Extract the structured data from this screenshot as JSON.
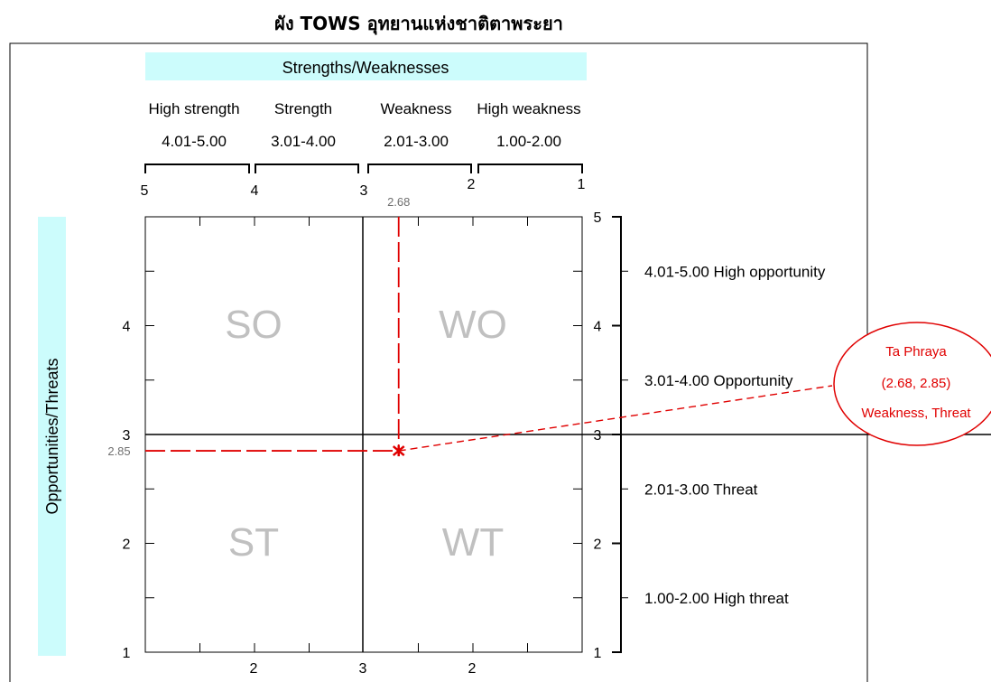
{
  "chart_data": {
    "type": "scatter",
    "title": "ผัง TOWS อุทยานแห่งชาติตาพระยา",
    "x_axis": {
      "header": "Strengths/Weaknesses",
      "scale_ticks": [
        "5",
        "4",
        "3",
        "2",
        "1"
      ],
      "bottom_ticks": [
        "2",
        "3",
        "2"
      ],
      "ranges": [
        {
          "label": "High strength",
          "range": "4.01-5.00"
        },
        {
          "label": "Strength",
          "range": "3.01-4.00"
        },
        {
          "label": "Weakness",
          "range": "2.01-3.00"
        },
        {
          "label": "High weakness",
          "range": "1.00-2.00"
        }
      ],
      "direction": "reversed",
      "lim": [
        1,
        5
      ]
    },
    "y_axis": {
      "header": "Opportunities/Threats",
      "left_ticks": [
        "1",
        "2",
        "3",
        "4"
      ],
      "right_ticks": [
        "1",
        "2",
        "3",
        "4",
        "5"
      ],
      "ranges": [
        {
          "label": "4.01-5.00 High opportunity"
        },
        {
          "label": "3.01-4.00 Opportunity"
        },
        {
          "label": "2.01-3.00 Threat"
        },
        {
          "label": "1.00-2.00 High threat"
        }
      ],
      "lim": [
        1,
        5
      ]
    },
    "quadrants": [
      "SO",
      "WO",
      "ST",
      "WT"
    ],
    "points": [
      {
        "x": 2.68,
        "y": 2.85,
        "x_label": "2.68",
        "y_label": "2.85"
      }
    ],
    "callout": [
      "Ta Phraya",
      "(2.68, 2.85)",
      "Weakness, Threat"
    ],
    "grid": false,
    "colors": {
      "point": "#e00000",
      "header_bg": "#ccfcfc",
      "quadrant_text": "#c0c0c0"
    }
  }
}
